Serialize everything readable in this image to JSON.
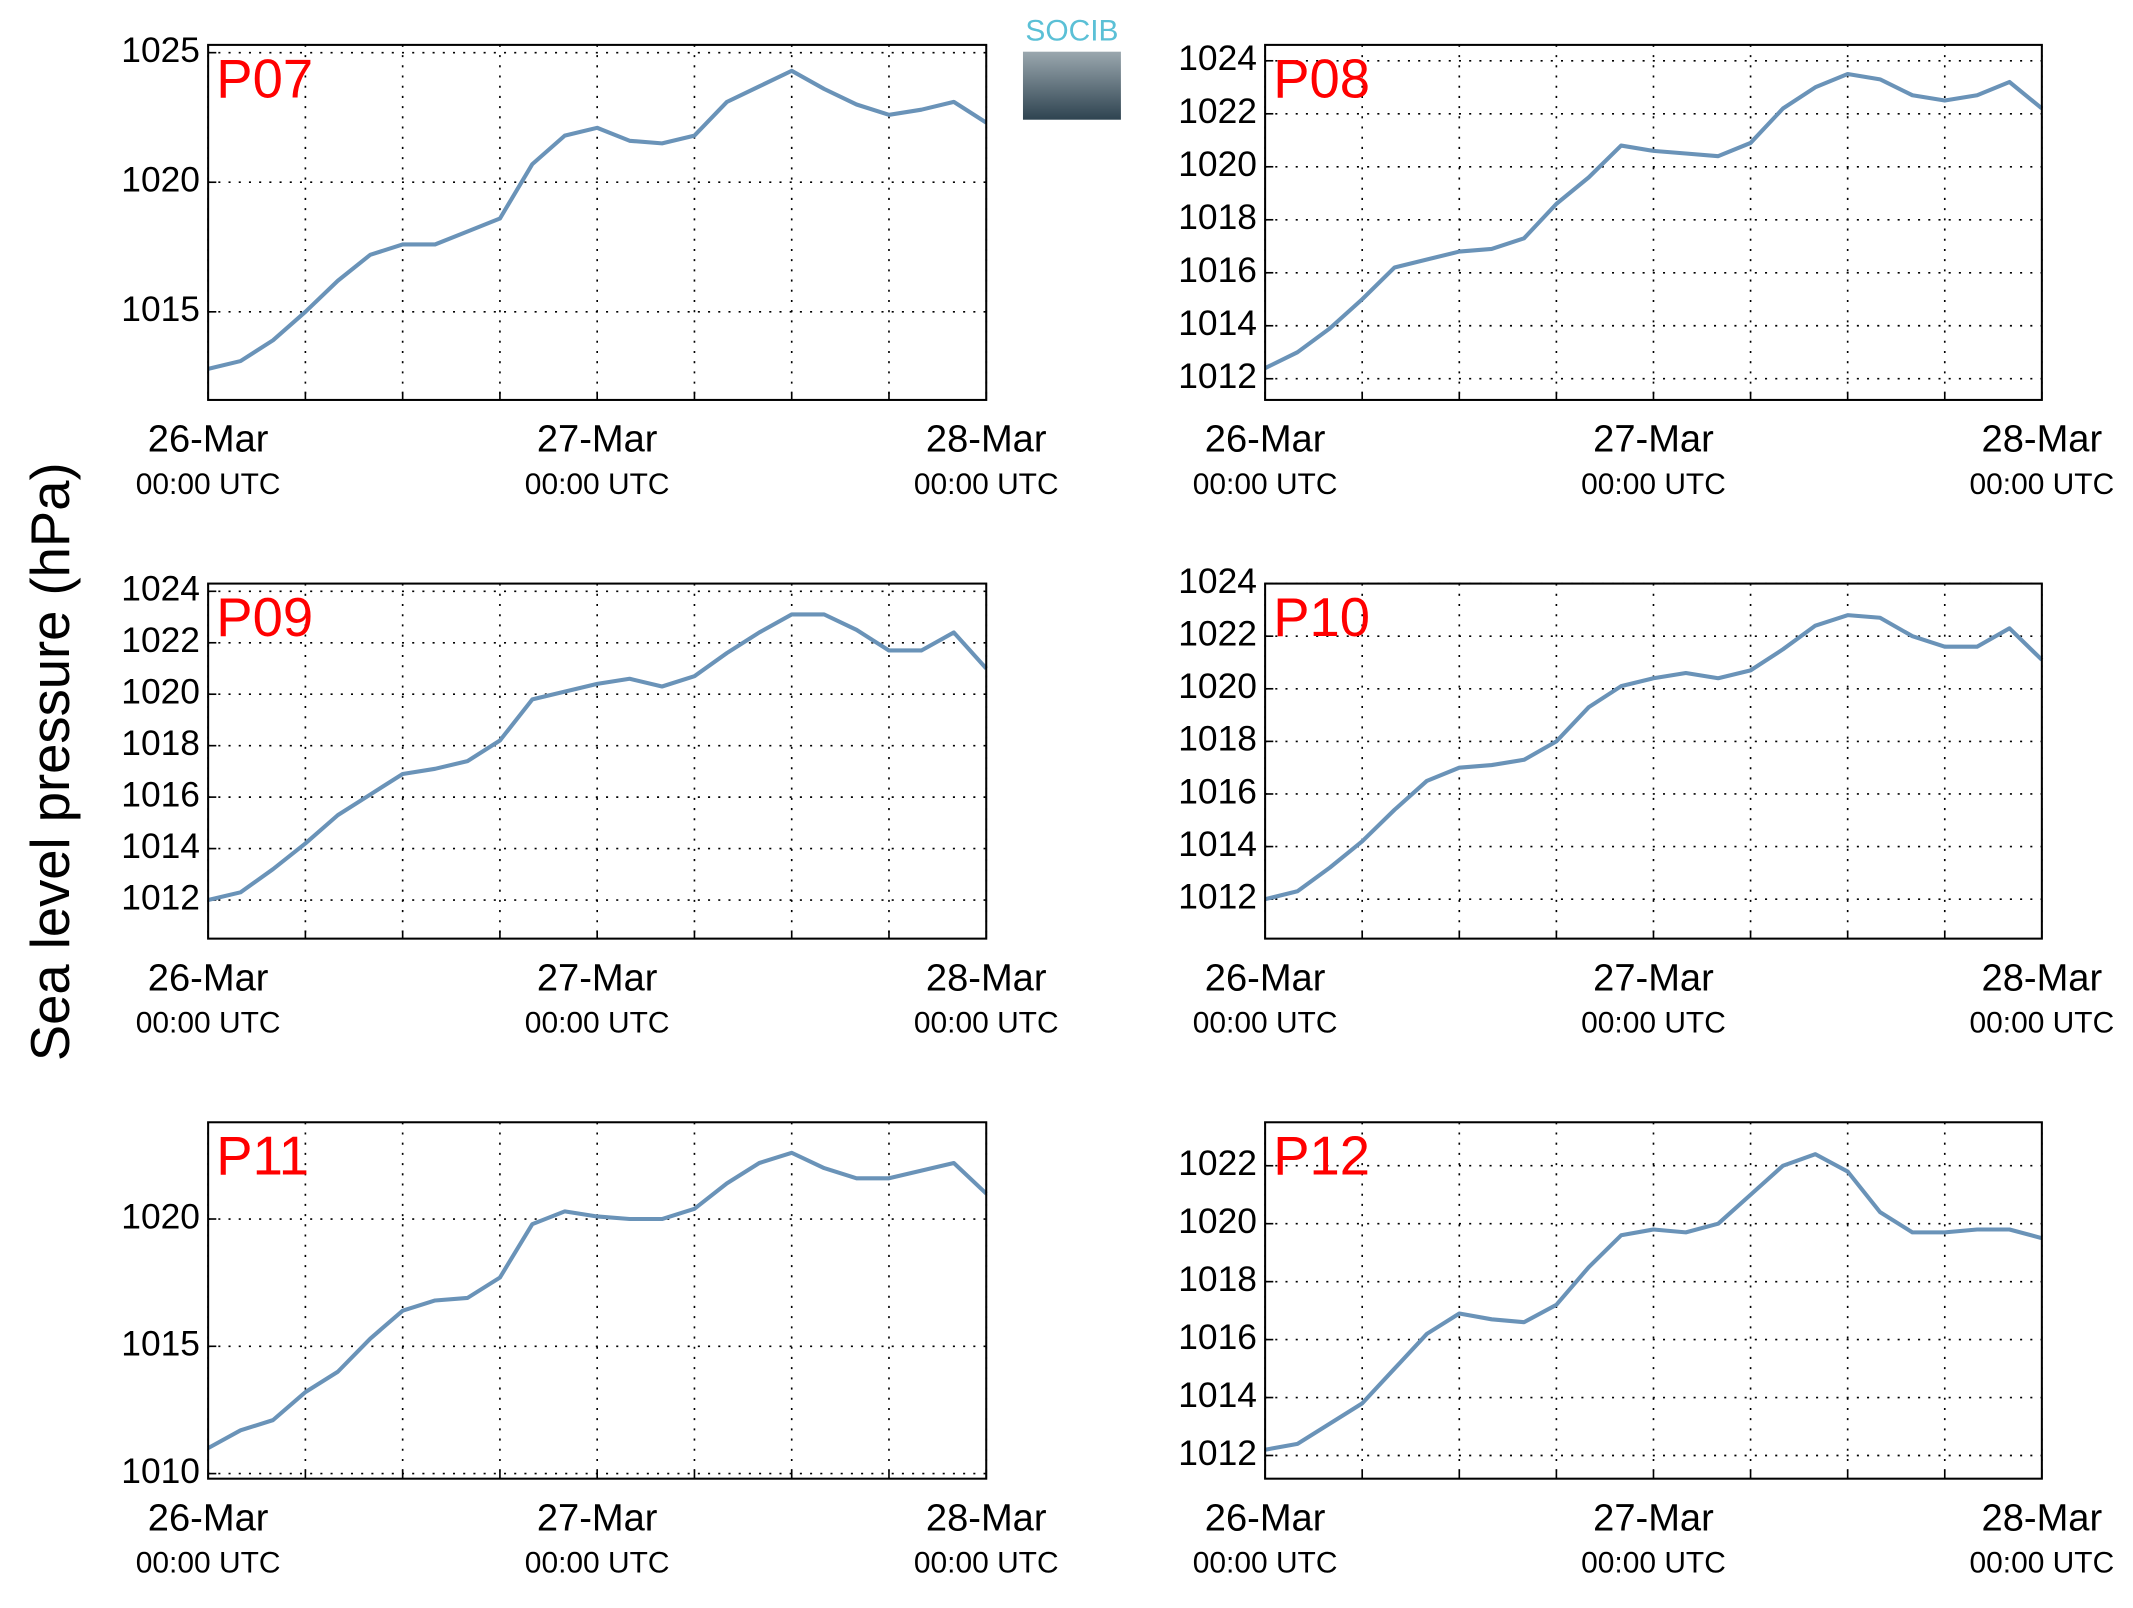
{
  "ylabel": "Sea level pressure (hPa)",
  "logo": "SOCIB",
  "chart_data": [
    {
      "type": "line",
      "title": "P07",
      "color": "#6a93b8",
      "grid": true,
      "x": [
        0,
        2,
        4,
        6,
        8,
        10,
        12,
        14,
        16,
        18,
        20,
        22,
        24,
        26,
        28,
        30,
        32,
        34,
        36,
        38,
        40,
        42,
        44,
        46,
        48
      ],
      "values": [
        1012.8,
        1013.1,
        1013.9,
        1015.0,
        1016.2,
        1017.2,
        1017.6,
        1017.6,
        1018.1,
        1018.6,
        1020.7,
        1021.8,
        1022.1,
        1021.6,
        1021.5,
        1021.8,
        1023.1,
        1023.7,
        1024.3,
        1023.6,
        1023.0,
        1022.6,
        1022.8,
        1023.1,
        1022.3
      ],
      "xlim": [
        0,
        48
      ],
      "xticks": [
        {
          "value": 0,
          "label": "26-Mar\n00:00 UTC"
        },
        {
          "value": 24,
          "label": "27-Mar\n00:00 UTC"
        },
        {
          "value": 48,
          "label": "28-Mar\n00:00 UTC"
        }
      ],
      "xgrid": [
        0,
        6,
        12,
        18,
        24,
        30,
        36,
        42,
        48
      ],
      "ylim": [
        1011.6,
        1025.3
      ],
      "yticks": [
        1015,
        1020,
        1025
      ]
    },
    {
      "type": "line",
      "title": "P08",
      "color": "#6a93b8",
      "grid": true,
      "x": [
        0,
        2,
        4,
        6,
        8,
        10,
        12,
        14,
        16,
        18,
        20,
        22,
        24,
        26,
        28,
        30,
        32,
        34,
        36,
        38,
        40,
        42,
        44,
        46,
        48
      ],
      "values": [
        1012.4,
        1013.0,
        1013.9,
        1015.0,
        1016.2,
        1016.5,
        1016.8,
        1016.9,
        1017.3,
        1018.6,
        1019.6,
        1020.8,
        1020.6,
        1020.5,
        1020.4,
        1020.9,
        1022.2,
        1023.0,
        1023.5,
        1023.3,
        1022.7,
        1022.5,
        1022.7,
        1023.2,
        1022.2
      ],
      "xlim": [
        0,
        48
      ],
      "xticks": [
        {
          "value": 0,
          "label": "26-Mar\n00:00 UTC"
        },
        {
          "value": 24,
          "label": "27-Mar\n00:00 UTC"
        },
        {
          "value": 48,
          "label": "28-Mar\n00:00 UTC"
        }
      ],
      "xgrid": [
        0,
        6,
        12,
        18,
        24,
        30,
        36,
        42,
        48
      ],
      "ylim": [
        1011.2,
        1024.6
      ],
      "yticks": [
        1012,
        1014,
        1016,
        1018,
        1020,
        1022,
        1024
      ]
    },
    {
      "type": "line",
      "title": "P09",
      "color": "#6a93b8",
      "grid": true,
      "x": [
        0,
        2,
        4,
        6,
        8,
        10,
        12,
        14,
        16,
        18,
        20,
        22,
        24,
        26,
        28,
        30,
        32,
        34,
        36,
        38,
        40,
        42,
        44,
        46,
        48
      ],
      "values": [
        1012.0,
        1012.3,
        1013.2,
        1014.2,
        1015.3,
        1016.1,
        1016.9,
        1017.1,
        1017.4,
        1018.2,
        1019.8,
        1020.1,
        1020.4,
        1020.6,
        1020.3,
        1020.7,
        1021.6,
        1022.4,
        1023.1,
        1023.1,
        1022.5,
        1021.7,
        1021.7,
        1022.4,
        1021.0
      ],
      "xlim": [
        0,
        48
      ],
      "xticks": [
        {
          "value": 0,
          "label": "26-Mar\n00:00 UTC"
        },
        {
          "value": 24,
          "label": "27-Mar\n00:00 UTC"
        },
        {
          "value": 48,
          "label": "28-Mar\n00:00 UTC"
        }
      ],
      "xgrid": [
        0,
        6,
        12,
        18,
        24,
        30,
        36,
        42,
        48
      ],
      "ylim": [
        1010.5,
        1024.3
      ],
      "yticks": [
        1012,
        1014,
        1016,
        1018,
        1020,
        1022,
        1024
      ]
    },
    {
      "type": "line",
      "title": "P10",
      "color": "#6a93b8",
      "grid": true,
      "x": [
        0,
        2,
        4,
        6,
        8,
        10,
        12,
        14,
        16,
        18,
        20,
        22,
        24,
        26,
        28,
        30,
        32,
        34,
        36,
        38,
        40,
        42,
        44,
        46,
        48
      ],
      "values": [
        1012.0,
        1012.3,
        1013.2,
        1014.2,
        1015.4,
        1016.5,
        1017.0,
        1017.1,
        1017.3,
        1018.0,
        1019.3,
        1020.1,
        1020.4,
        1020.6,
        1020.4,
        1020.7,
        1021.5,
        1022.4,
        1022.8,
        1022.7,
        1022.0,
        1021.6,
        1021.6,
        1022.3,
        1021.1
      ],
      "xlim": [
        0,
        48
      ],
      "xticks": [
        {
          "value": 0,
          "label": "26-Mar\n00:00 UTC"
        },
        {
          "value": 24,
          "label": "27-Mar\n00:00 UTC"
        },
        {
          "value": 48,
          "label": "28-Mar\n00:00 UTC"
        }
      ],
      "xgrid": [
        0,
        6,
        12,
        18,
        24,
        30,
        36,
        42,
        48
      ],
      "ylim": [
        1010.5,
        1024
      ],
      "yticks": [
        1012,
        1014,
        1016,
        1018,
        1020,
        1022,
        1024
      ]
    },
    {
      "type": "line",
      "title": "P11",
      "color": "#6a93b8",
      "grid": true,
      "x": [
        0,
        2,
        4,
        6,
        8,
        10,
        12,
        14,
        16,
        18,
        20,
        22,
        24,
        26,
        28,
        30,
        32,
        34,
        36,
        38,
        40,
        42,
        44,
        46,
        48
      ],
      "values": [
        1011.0,
        1011.7,
        1012.1,
        1013.2,
        1014.0,
        1015.3,
        1016.4,
        1016.8,
        1016.9,
        1017.7,
        1019.8,
        1020.3,
        1020.1,
        1020.0,
        1020.0,
        1020.4,
        1021.4,
        1022.2,
        1022.6,
        1022.0,
        1021.6,
        1021.6,
        1021.9,
        1022.2,
        1021.0
      ],
      "xlim": [
        0,
        48
      ],
      "xticks": [
        {
          "value": 0,
          "label": "26-Mar\n00:00 UTC"
        },
        {
          "value": 24,
          "label": "27-Mar\n00:00 UTC"
        },
        {
          "value": 48,
          "label": "28-Mar\n00:00 UTC"
        }
      ],
      "xgrid": [
        0,
        6,
        12,
        18,
        24,
        30,
        36,
        42,
        48
      ],
      "ylim": [
        1009.8,
        1023.8
      ],
      "yticks": [
        1010,
        1015,
        1020
      ]
    },
    {
      "type": "line",
      "title": "P12",
      "color": "#6a93b8",
      "grid": true,
      "x": [
        0,
        2,
        4,
        6,
        8,
        10,
        12,
        14,
        16,
        18,
        20,
        22,
        24,
        26,
        28,
        30,
        32,
        34,
        36,
        38,
        40,
        42,
        44,
        46,
        48
      ],
      "values": [
        1012.2,
        1012.4,
        1013.1,
        1013.8,
        1015.0,
        1016.2,
        1016.9,
        1016.7,
        1016.6,
        1017.2,
        1018.5,
        1019.6,
        1019.8,
        1019.7,
        1020.0,
        1021.0,
        1022.0,
        1022.4,
        1021.8,
        1020.4,
        1019.7,
        1019.7,
        1019.8,
        1019.8,
        1019.5
      ],
      "xlim": [
        0,
        48
      ],
      "xticks": [
        {
          "value": 0,
          "label": "26-Mar\n00:00 UTC"
        },
        {
          "value": 24,
          "label": "27-Mar\n00:00 UTC"
        },
        {
          "value": 48,
          "label": "28-Mar\n00:00 UTC"
        }
      ],
      "xgrid": [
        0,
        6,
        12,
        18,
        24,
        30,
        36,
        42,
        48
      ],
      "ylim": [
        1011.2,
        1023.5
      ],
      "yticks": [
        1012,
        1014,
        1016,
        1018,
        1020,
        1022
      ]
    }
  ]
}
